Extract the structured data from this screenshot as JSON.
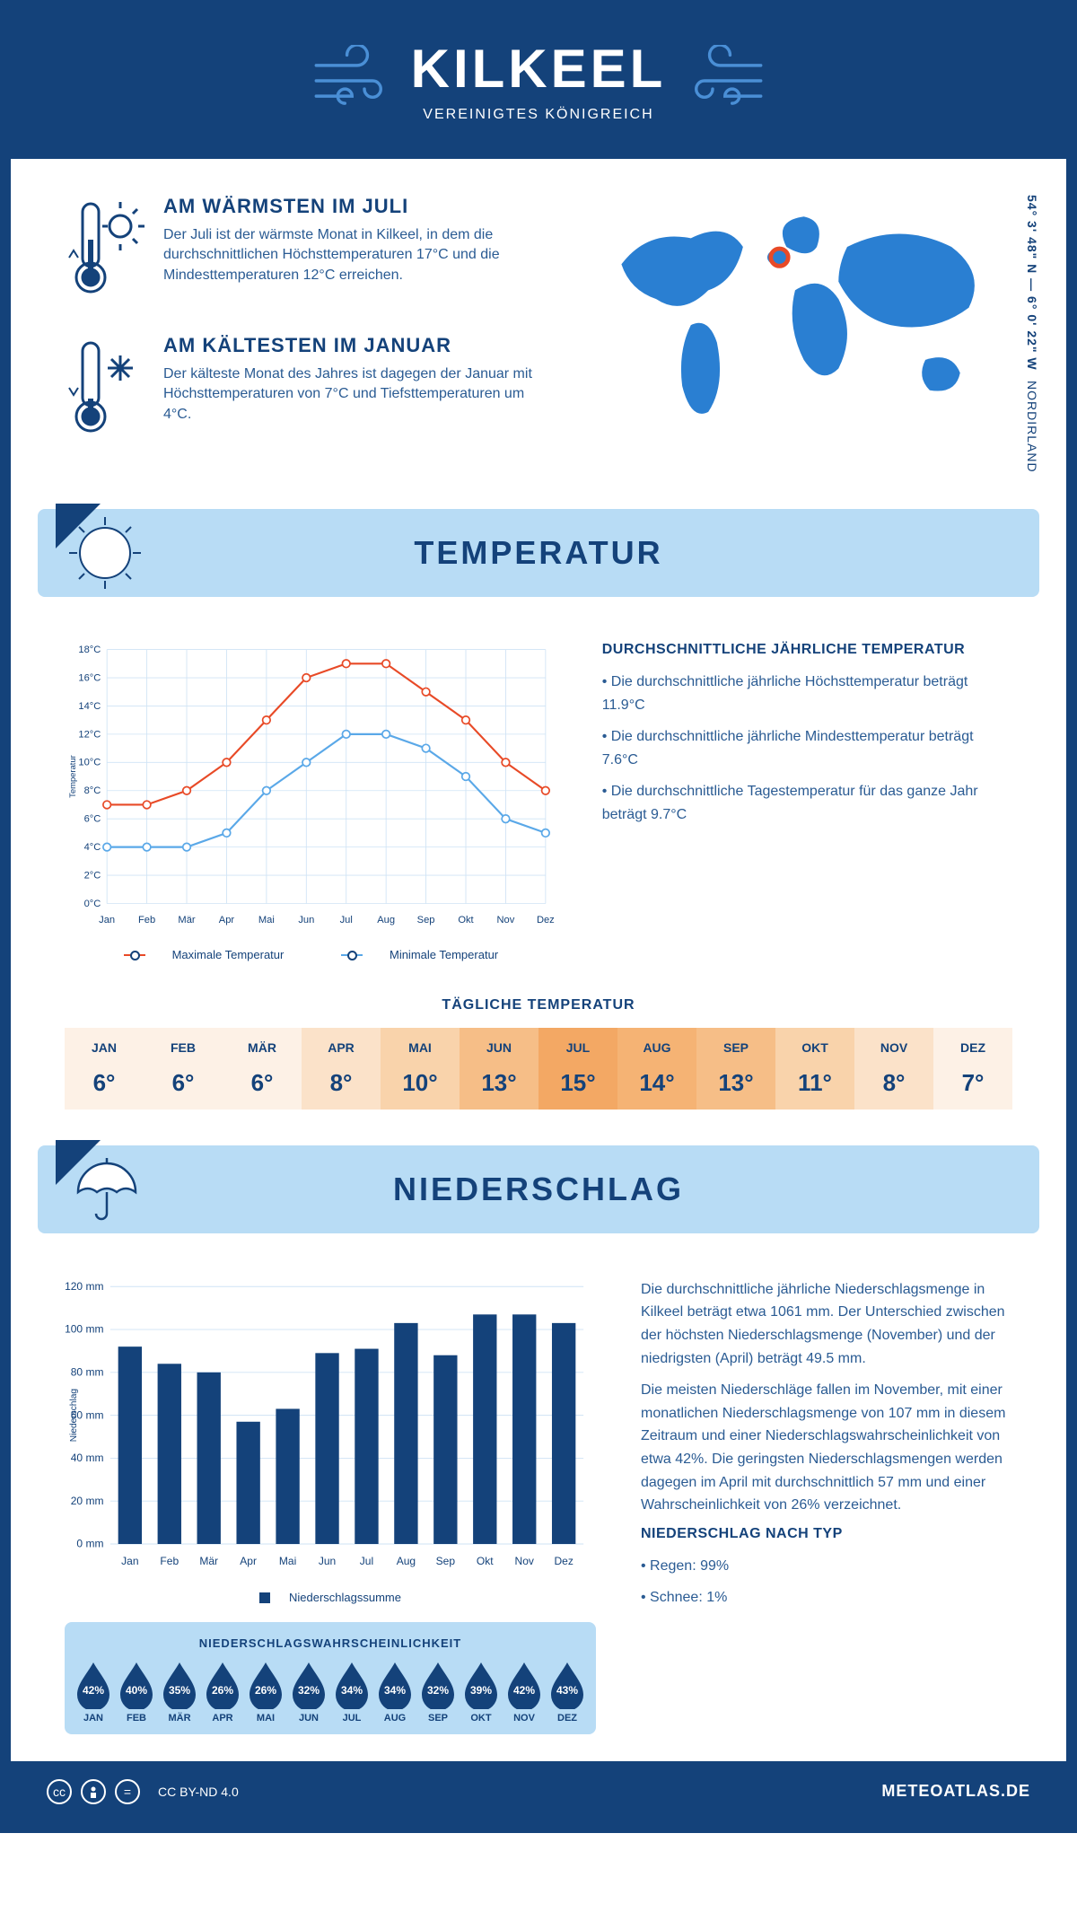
{
  "header": {
    "title": "KILKEEL",
    "subtitle": "VEREINIGTES KÖNIGREICH"
  },
  "location": {
    "coords": "54° 3' 48\" N — 6° 0' 22\" W",
    "region": "NORDIRLAND",
    "marker_color": "#e84a27",
    "land_color": "#2a7fd2"
  },
  "warmest": {
    "title": "AM WÄRMSTEN IM JULI",
    "text": "Der Juli ist der wärmste Monat in Kilkeel, in dem die durchschnittlichen Höchsttemperaturen 17°C und die Mindesttemperaturen 12°C erreichen."
  },
  "coldest": {
    "title": "AM KÄLTESTEN IM JANUAR",
    "text": "Der kälteste Monat des Jahres ist dagegen der Januar mit Höchsttemperaturen von 7°C und Tiefsttemperaturen um 4°C."
  },
  "temp_section": {
    "heading": "TEMPERATUR",
    "side_title": "DURCHSCHNITTLICHE JÄHRLICHE TEMPERATUR",
    "bullet1": "Die durchschnittliche jährliche Höchsttemperatur beträgt 11.9°C",
    "bullet2": "Die durchschnittliche jährliche Mindesttemperatur beträgt 7.6°C",
    "bullet3": "Die durchschnittliche Tagestemperatur für das ganze Jahr beträgt 9.7°C"
  },
  "temp_chart": {
    "type": "line",
    "months": [
      "Jan",
      "Feb",
      "Mär",
      "Apr",
      "Mai",
      "Jun",
      "Jul",
      "Aug",
      "Sep",
      "Okt",
      "Nov",
      "Dez"
    ],
    "max_series": {
      "label": "Maximale Temperatur",
      "color": "#e84a27",
      "values": [
        7,
        7,
        8,
        10,
        13,
        16,
        17,
        17,
        15,
        13,
        10,
        8
      ]
    },
    "min_series": {
      "label": "Minimale Temperatur",
      "color": "#5aa8e8",
      "values": [
        4,
        4,
        4,
        5,
        8,
        10,
        12,
        12,
        11,
        9,
        6,
        5
      ]
    },
    "y_label": "Temperatur",
    "y_ticks": [
      0,
      2,
      4,
      6,
      8,
      10,
      12,
      14,
      16,
      18
    ],
    "ylim": [
      0,
      18
    ],
    "grid_color": "#cfe3f5",
    "line_width": 2.5,
    "marker_size": 5
  },
  "daily": {
    "title": "TÄGLICHE TEMPERATUR",
    "months": [
      "JAN",
      "FEB",
      "MÄR",
      "APR",
      "MAI",
      "JUN",
      "JUL",
      "AUG",
      "SEP",
      "OKT",
      "NOV",
      "DEZ"
    ],
    "values": [
      "6°",
      "6°",
      "6°",
      "8°",
      "10°",
      "13°",
      "15°",
      "14°",
      "13°",
      "11°",
      "8°",
      "7°"
    ],
    "cell_colors": [
      "#fdf1e6",
      "#fdf1e6",
      "#fdf1e6",
      "#fbe2c9",
      "#f9d3ab",
      "#f6be87",
      "#f3a864",
      "#f5b374",
      "#f6be87",
      "#f9d3ab",
      "#fbe2c9",
      "#fdf1e6"
    ]
  },
  "precip_section": {
    "heading": "NIEDERSCHLAG",
    "para1": "Die durchschnittliche jährliche Niederschlagsmenge in Kilkeel beträgt etwa 1061 mm. Der Unterschied zwischen der höchsten Niederschlagsmenge (November) und der niedrigsten (April) beträgt 49.5 mm.",
    "para2": "Die meisten Niederschläge fallen im November, mit einer monatlichen Niederschlagsmenge von 107 mm in diesem Zeitraum und einer Niederschlagswahrscheinlichkeit von etwa 42%. Die geringsten Niederschlagsmengen werden dagegen im April mit durchschnittlich 57 mm und einer Wahrscheinlichkeit von 26% verzeichnet.",
    "type_title": "NIEDERSCHLAG NACH TYP",
    "type1": "Regen: 99%",
    "type2": "Schnee: 1%"
  },
  "precip_chart": {
    "type": "bar",
    "months": [
      "Jan",
      "Feb",
      "Mär",
      "Apr",
      "Mai",
      "Jun",
      "Jul",
      "Aug",
      "Sep",
      "Okt",
      "Nov",
      "Dez"
    ],
    "values": [
      92,
      84,
      80,
      57,
      63,
      89,
      91,
      103,
      88,
      107,
      107,
      103
    ],
    "bar_color": "#14427a",
    "y_label": "Niederschlag",
    "y_ticks": [
      0,
      20,
      40,
      60,
      80,
      100,
      120
    ],
    "ylim": [
      0,
      120
    ],
    "legend": "Niederschlagssumme",
    "grid_color": "#cfe3f5",
    "bar_width": 0.6
  },
  "probability": {
    "title": "NIEDERSCHLAGSWAHRSCHEINLICHKEIT",
    "months": [
      "JAN",
      "FEB",
      "MÄR",
      "APR",
      "MAI",
      "JUN",
      "JUL",
      "AUG",
      "SEP",
      "OKT",
      "NOV",
      "DEZ"
    ],
    "values": [
      "42%",
      "40%",
      "35%",
      "26%",
      "26%",
      "32%",
      "34%",
      "34%",
      "32%",
      "39%",
      "42%",
      "43%"
    ],
    "drop_color": "#14427a"
  },
  "footer": {
    "license": "CC BY-ND 4.0",
    "site": "METEOATLAS.DE"
  },
  "palette": {
    "primary": "#14427a",
    "light_blue": "#b8dcf5",
    "text_blue": "#2a5b93"
  }
}
